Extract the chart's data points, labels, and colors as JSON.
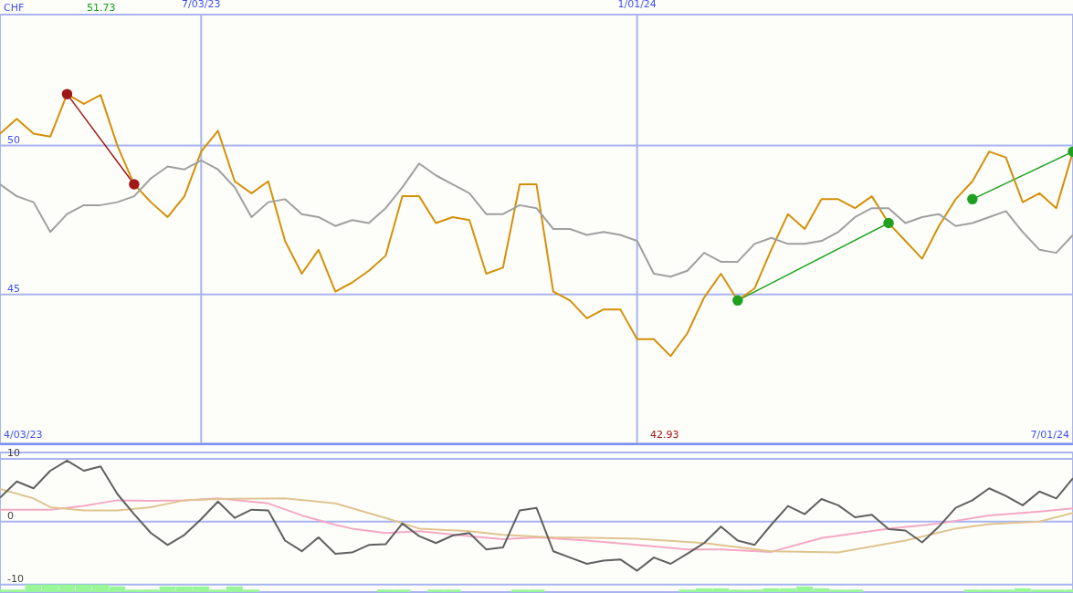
{
  "chart_data": [
    {
      "type": "line",
      "ylabel": "CHF",
      "x": [
        "2023-04-10",
        "2023-04-17",
        "2023-04-24",
        "2023-05-01",
        "2023-05-08",
        "2023-05-15",
        "2023-05-22",
        "2023-05-29",
        "2023-06-05",
        "2023-06-12",
        "2023-06-19",
        "2023-06-26",
        "2023-07-03",
        "2023-07-10",
        "2023-07-17",
        "2023-07-24",
        "2023-07-31",
        "2023-08-07",
        "2023-08-14",
        "2023-08-21",
        "2023-08-28",
        "2023-09-04",
        "2023-09-11",
        "2023-09-18",
        "2023-09-25",
        "2023-10-02",
        "2023-10-09",
        "2023-10-16",
        "2023-10-23",
        "2023-10-30",
        "2023-11-06",
        "2023-11-13",
        "2023-11-20",
        "2023-11-27",
        "2023-12-04",
        "2023-12-11",
        "2023-12-18",
        "2023-12-25",
        "2024-01-01",
        "2024-01-08",
        "2024-01-15",
        "2024-01-22",
        "2024-01-29",
        "2024-02-05",
        "2024-02-12",
        "2024-02-19",
        "2024-02-26",
        "2024-03-04",
        "2024-03-11",
        "2024-03-18",
        "2024-03-25",
        "2024-04-01",
        "2024-04-08",
        "2024-04-15",
        "2024-04-22",
        "2024-04-29",
        "2024-05-06",
        "2024-05-13",
        "2024-05-20",
        "2024-05-27",
        "2024-06-03",
        "2024-06-10",
        "2024-06-17",
        "2024-06-24",
        "2024-07-01"
      ],
      "series": [
        {
          "color": "#d4900a",
          "values": [
            50.4,
            50.9,
            50.4,
            50.3,
            51.73,
            51.4,
            51.7,
            50.0,
            48.7,
            48.1,
            47.6,
            48.3,
            49.8,
            50.5,
            48.8,
            48.4,
            48.8,
            46.8,
            45.7,
            46.5,
            45.1,
            45.4,
            45.8,
            46.3,
            48.3,
            48.3,
            47.4,
            47.6,
            47.5,
            45.7,
            45.9,
            48.7,
            48.7,
            45.1,
            44.8,
            44.2,
            44.5,
            44.5,
            43.5,
            43.5,
            42.93,
            43.7,
            44.9,
            45.7,
            44.8,
            45.2,
            46.5,
            47.7,
            47.2,
            48.2,
            48.2,
            47.9,
            48.3,
            47.4,
            46.8,
            46.2,
            47.3,
            48.2,
            48.8,
            49.8,
            49.6,
            48.1,
            48.4,
            47.9,
            49.8
          ]
        },
        {
          "color": "#a0a0a0",
          "values": [
            48.7,
            48.3,
            48.1,
            47.1,
            47.7,
            48.0,
            48.0,
            48.1,
            48.3,
            48.9,
            49.3,
            49.2,
            49.5,
            49.2,
            48.6,
            47.6,
            48.1,
            48.2,
            47.7,
            47.6,
            47.3,
            47.5,
            47.4,
            47.9,
            48.6,
            49.4,
            49.0,
            48.7,
            48.4,
            47.7,
            47.7,
            48.0,
            47.9,
            47.2,
            47.2,
            47.0,
            47.1,
            47.0,
            46.8,
            45.7,
            45.6,
            45.8,
            46.4,
            46.1,
            46.1,
            46.7,
            46.9,
            46.7,
            46.7,
            46.8,
            47.1,
            47.6,
            47.9,
            47.9,
            47.4,
            47.6,
            47.7,
            47.3,
            47.4,
            47.6,
            47.8,
            47.1,
            46.5,
            46.4,
            47.0
          ]
        },
        {
          "type": "line",
          "marker": "circle",
          "color": "#a01818",
          "x": [
            "2023-05-08",
            "2023-06-05"
          ],
          "values": [
            51.73,
            48.7
          ]
        },
        {
          "type": "line",
          "marker": "circle",
          "color": "#20a020",
          "x": [
            "2024-02-12",
            "2024-04-15"
          ],
          "values": [
            44.8,
            47.4
          ]
        },
        {
          "type": "line",
          "marker": "circle",
          "color": "#20a020",
          "x": [
            "2024-05-20",
            "2024-07-01"
          ],
          "values": [
            48.2,
            49.8
          ]
        }
      ],
      "xlim": [
        "2023-04-10",
        "2024-07-01"
      ],
      "xticks": [
        {
          "value": "2023-07-03",
          "label": "7/03/23"
        },
        {
          "value": "2024-01-01",
          "label": "1/01/24"
        }
      ],
      "ylim": [
        40,
        54.4
      ],
      "yticks": [
        45,
        50
      ],
      "grid": true,
      "annotations": [
        "51.73",
        "42.93",
        "4/03/23",
        "7/01/24"
      ]
    },
    {
      "type": "line",
      "tick_labels": "y",
      "x": [
        "2023-04-10",
        "2023-04-17",
        "2023-04-24",
        "2023-05-01",
        "2023-05-08",
        "2023-05-15",
        "2023-05-22",
        "2023-05-29",
        "2023-06-05",
        "2023-06-12",
        "2023-06-19",
        "2023-06-26",
        "2023-07-03",
        "2023-07-10",
        "2023-07-17",
        "2023-07-24",
        "2023-07-31",
        "2023-08-07",
        "2023-08-14",
        "2023-08-21",
        "2023-08-28",
        "2023-09-04",
        "2023-09-11",
        "2023-09-18",
        "2023-09-25",
        "2023-10-02",
        "2023-10-09",
        "2023-10-16",
        "2023-10-23",
        "2023-10-30",
        "2023-11-06",
        "2023-11-13",
        "2023-11-20",
        "2023-11-27",
        "2023-12-04",
        "2023-12-11",
        "2023-12-18",
        "2023-12-25",
        "2024-01-01",
        "2024-01-08",
        "2024-01-15",
        "2024-01-22",
        "2024-01-29",
        "2024-02-05",
        "2024-02-12",
        "2024-02-19",
        "2024-02-26",
        "2024-03-04",
        "2024-03-11",
        "2024-03-18",
        "2024-03-25",
        "2024-04-01",
        "2024-04-08",
        "2024-04-15",
        "2024-04-22",
        "2024-04-29",
        "2024-05-06",
        "2024-05-13",
        "2024-05-20",
        "2024-05-27",
        "2024-06-03",
        "2024-06-10",
        "2024-06-17",
        "2024-06-24",
        "2024-07-01"
      ],
      "series": [
        {
          "type": "bar",
          "color": "#98f898",
          "base": [
            -11.2,
            -11.2,
            -11.2,
            -11.2,
            -11.2,
            -11.2,
            -11.2,
            -11.2,
            -11.2,
            -11.2,
            -11.2,
            -11.2,
            -11.2,
            -11.2,
            -11.2,
            -11.2,
            null,
            null,
            null,
            null,
            null,
            null,
            null,
            -11.2,
            -11.2,
            null,
            -11.2,
            -11.2,
            null,
            null,
            null,
            -11.2,
            -11.2,
            null,
            null,
            null,
            null,
            null,
            null,
            null,
            null,
            -11.2,
            -11.2,
            -11.2,
            -11.2,
            -11.2,
            -11.2,
            -11.2,
            -11.2,
            -11.2,
            -11.2,
            -11.2,
            null,
            null,
            null,
            null,
            null,
            null,
            -11.2,
            -11.2,
            -11.2,
            -11.2,
            -11.2,
            -11.2,
            -11.2
          ],
          "values": [
            0.4,
            0.4,
            1.2,
            1.2,
            1.2,
            1.2,
            1.2,
            0.9,
            0.4,
            0.4,
            0.9,
            0.9,
            0.9,
            0.4,
            0.9,
            0.4,
            null,
            null,
            null,
            null,
            null,
            null,
            null,
            0.4,
            0.4,
            null,
            0.4,
            0.4,
            null,
            null,
            null,
            0.4,
            0.4,
            null,
            null,
            null,
            null,
            null,
            null,
            null,
            null,
            0.4,
            0.6,
            0.6,
            0.4,
            0.4,
            0.6,
            0.6,
            0.9,
            0.6,
            0.4,
            0.4,
            null,
            null,
            null,
            null,
            null,
            null,
            0.4,
            0.4,
            0.4,
            0.6,
            0.4,
            0.4,
            0.4
          ]
        },
        {
          "color": "#f4a8c4",
          "x": [
            "2023-04-10",
            "2023-05-01",
            "2023-05-15",
            "2023-05-29",
            "2023-06-12",
            "2023-06-26",
            "2023-07-10",
            "2023-07-31",
            "2023-08-14",
            "2023-08-28",
            "2023-09-04",
            "2023-09-18",
            "2023-10-02",
            "2023-10-23",
            "2023-11-06",
            "2023-11-20",
            "2023-12-11",
            "2024-01-01",
            "2024-01-22",
            "2024-02-05",
            "2024-02-26",
            "2024-03-18",
            "2024-04-15",
            "2024-05-06",
            "2024-05-27",
            "2024-06-17",
            "2024-07-01"
          ],
          "values": [
            1.9,
            1.9,
            2.5,
            3.4,
            3.3,
            3.4,
            3.7,
            2.9,
            1.0,
            -0.5,
            -1.1,
            -1.8,
            -1.5,
            -2.3,
            -2.8,
            -2.5,
            -3.0,
            -3.7,
            -4.4,
            -4.4,
            -4.8,
            -2.6,
            -1.1,
            -0.3,
            1.0,
            1.6,
            2.1
          ]
        },
        {
          "color": "#e0c490",
          "x": [
            "2023-04-10",
            "2023-04-24",
            "2023-05-01",
            "2023-05-15",
            "2023-05-29",
            "2023-06-12",
            "2023-06-26",
            "2023-07-10",
            "2023-08-07",
            "2023-08-28",
            "2023-09-18",
            "2023-10-02",
            "2023-10-23",
            "2023-11-06",
            "2023-11-27",
            "2023-12-18",
            "2024-01-01",
            "2024-01-29",
            "2024-02-26",
            "2024-03-25",
            "2024-04-22",
            "2024-05-13",
            "2024-05-27",
            "2024-06-17",
            "2024-07-01"
          ],
          "values": [
            5.2,
            3.7,
            2.3,
            1.8,
            1.8,
            2.3,
            3.4,
            3.6,
            3.7,
            2.9,
            0.6,
            -1.1,
            -1.5,
            -2.1,
            -2.5,
            -2.6,
            -2.7,
            -3.4,
            -4.7,
            -4.9,
            -3.0,
            -1.1,
            -0.4,
            0,
            1.4
          ]
        },
        {
          "color": "#606060",
          "values": [
            3.8,
            6.4,
            5.3,
            8.1,
            9.7,
            8.1,
            8.8,
            4.4,
            1.2,
            -1.8,
            -3.7,
            -2.1,
            0.4,
            3.2,
            0.6,
            1.9,
            1.8,
            -3.0,
            -4.7,
            -2.5,
            -5.1,
            -4.9,
            -3.7,
            -3.6,
            -0.3,
            -2.3,
            -3.4,
            -2.2,
            -1.8,
            -4.4,
            -4.1,
            1.8,
            2.2,
            -4.7,
            -5.7,
            -6.7,
            -6.2,
            -6.0,
            -7.8,
            -5.7,
            -6.7,
            -5.1,
            -3.4,
            -0.8,
            -3.0,
            -3.7,
            -0.5,
            2.5,
            1.2,
            3.6,
            2.6,
            0.7,
            1.1,
            -1.2,
            -1.4,
            -3.3,
            -0.8,
            2.2,
            3.4,
            5.3,
            4.1,
            2.6,
            4.8,
            3.7,
            6.9
          ]
        }
      ],
      "xlim": [
        "2023-04-10",
        "2024-07-01"
      ],
      "xticks": [
        {
          "value": "2023-07-03",
          "label": null
        },
        {
          "value": "2024-01-01",
          "label": null
        }
      ],
      "ylim": [
        -11.2,
        11
      ],
      "yticks": [
        -10,
        0,
        10
      ],
      "grid": true
    }
  ]
}
